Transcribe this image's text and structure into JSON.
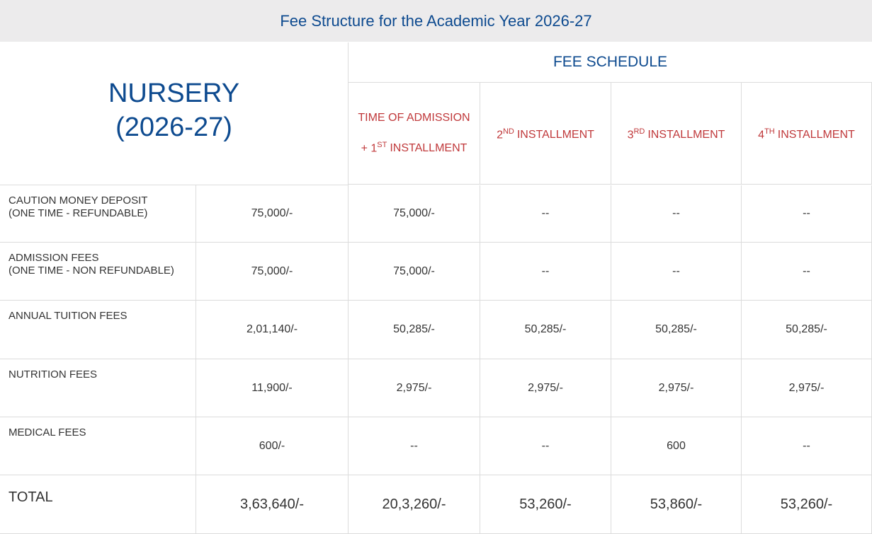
{
  "header": {
    "title": "Fee Structure for the Academic Year 2026-27"
  },
  "table": {
    "class_name": "NURSERY",
    "class_year": "(2026-27)",
    "schedule_title": "FEE SCHEDULE",
    "columns": [
      {
        "line1": "TIME OF ADMISSION",
        "num": "+ 1",
        "sup": "ST",
        "rest": "INSTALLMENT"
      },
      {
        "num": "2",
        "sup": "ND",
        "rest": "INSTALLMENT"
      },
      {
        "num": "3",
        "sup": "RD",
        "rest": "INSTALLMENT"
      },
      {
        "num": "4",
        "sup": "TH",
        "rest": "INSTALLMENT"
      }
    ],
    "rows": [
      {
        "label": [
          "CAUTION MONEY DEPOSIT",
          "(ONE TIME - REFUNDABLE)"
        ],
        "total": "75,000/-",
        "schedule": [
          "75,000/-",
          "--",
          "--",
          "--"
        ]
      },
      {
        "label": [
          "ADMISSION FEES",
          "(ONE TIME - NON REFUNDABLE)"
        ],
        "total": "75,000/-",
        "schedule": [
          "75,000/-",
          "--",
          "--",
          "--"
        ]
      },
      {
        "label": [
          "ANNUAL TUITION FEES"
        ],
        "total": "2,01,140/-",
        "schedule": [
          "50,285/-",
          "50,285/-",
          "50,285/-",
          "50,285/-"
        ]
      },
      {
        "label": [
          "NUTRITION FEES"
        ],
        "total": "11,900/-",
        "schedule": [
          "2,975/-",
          "2,975/-",
          "2,975/-",
          "2,975/-"
        ]
      },
      {
        "label": [
          "MEDICAL FEES"
        ],
        "total": "600/-",
        "schedule": [
          "--",
          "--",
          "600",
          "--"
        ]
      },
      {
        "label": [
          "TOTAL"
        ],
        "total": "3,63,640/-",
        "schedule": [
          "20,3,260/-",
          "53,260/-",
          "53,860/-",
          "53,260/-"
        ]
      }
    ]
  }
}
